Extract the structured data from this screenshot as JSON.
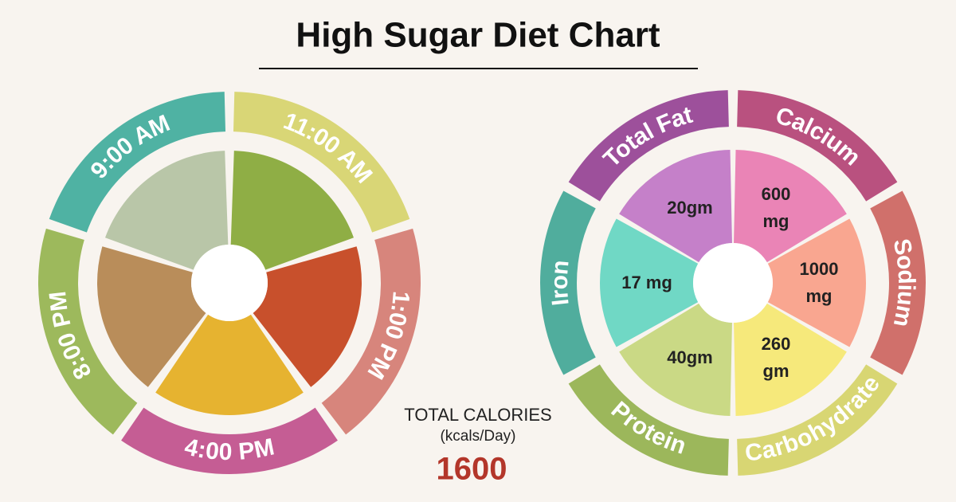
{
  "header": {
    "title": "High Sugar Diet Chart"
  },
  "meals": [
    {
      "time": "11:00 AM"
    },
    {
      "time": "1:00 PM"
    },
    {
      "time": "4:00 PM"
    },
    {
      "time": "8:00 PM"
    },
    {
      "time": "9:00 AM"
    }
  ],
  "nutrients": [
    {
      "name": "Calcium",
      "value": "600 mg"
    },
    {
      "name": "Sodium",
      "value": "1000 mg"
    },
    {
      "name": "Carbohydrate",
      "value": "260 gm"
    },
    {
      "name": "Protein",
      "value": "40gm"
    },
    {
      "name": "Iron",
      "value": "17 mg"
    },
    {
      "name": "Total Fat",
      "value": "20gm"
    }
  ],
  "total_calories": {
    "label": "TOTAL CALORIES",
    "unit": "(kcals/Day)",
    "value": 1600
  }
}
